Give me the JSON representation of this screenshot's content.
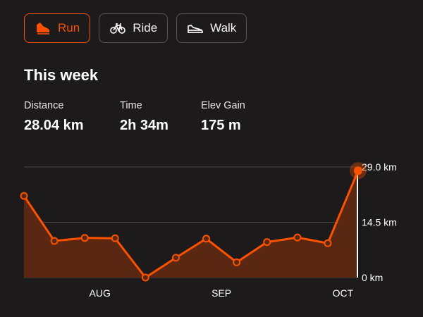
{
  "tabs": [
    {
      "label": "Run",
      "icon": "shoe-icon",
      "active": true
    },
    {
      "label": "Ride",
      "icon": "bicycle-icon",
      "active": false
    },
    {
      "label": "Walk",
      "icon": "walking-shoe-icon",
      "active": false
    }
  ],
  "summary": {
    "title": "This week",
    "stats": [
      {
        "label": "Distance",
        "value": "28.04 km"
      },
      {
        "label": "Time",
        "value": "2h 34m"
      },
      {
        "label": "Elev Gain",
        "value": "175 m"
      }
    ]
  },
  "colors": {
    "accent": "#fc5200",
    "background": "#1c1a1b",
    "area_fill": "#5a2812",
    "border": "#5a5758"
  },
  "chart_data": {
    "type": "area",
    "y_unit": "km",
    "ylim": [
      0,
      29
    ],
    "y_ticks": [
      {
        "value": 29,
        "label": "29.0 km"
      },
      {
        "value": 14.5,
        "label": "14.5 km"
      },
      {
        "value": 0,
        "label": "0 km"
      }
    ],
    "x_ticks": [
      {
        "index": 2.5,
        "label": "AUG"
      },
      {
        "index": 6.5,
        "label": "SEP"
      },
      {
        "index": 10.5,
        "label": "OCT"
      }
    ],
    "values": [
      21.4,
      9.6,
      10.4,
      10.3,
      0,
      5.2,
      10.2,
      4.0,
      9.3,
      10.5,
      9.0,
      28.04
    ],
    "highlight_index": 11
  }
}
